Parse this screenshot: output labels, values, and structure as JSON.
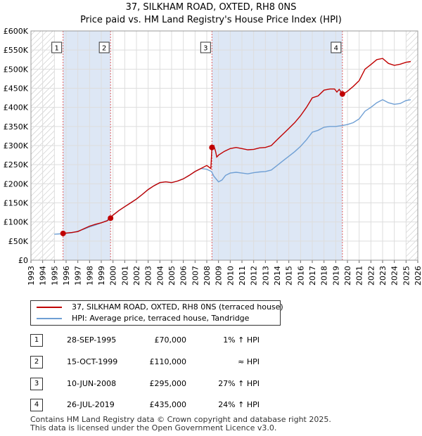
{
  "title_line1": "37, SILKHAM ROAD, OXTED, RH8 0NS",
  "title_line2": "Price paid vs. HM Land Registry's House Price Index (HPI)",
  "chart_data": {
    "type": "line",
    "x_range": [
      1993,
      2026
    ],
    "ylim": [
      0,
      600000
    ],
    "y_ticks": [
      {
        "value": 0,
        "label": "£0"
      },
      {
        "value": 50000,
        "label": "£50K"
      },
      {
        "value": 100000,
        "label": "£100K"
      },
      {
        "value": 150000,
        "label": "£150K"
      },
      {
        "value": 200000,
        "label": "£200K"
      },
      {
        "value": 250000,
        "label": "£250K"
      },
      {
        "value": 300000,
        "label": "£300K"
      },
      {
        "value": 350000,
        "label": "£350K"
      },
      {
        "value": 400000,
        "label": "£400K"
      },
      {
        "value": 450000,
        "label": "£450K"
      },
      {
        "value": 500000,
        "label": "£500K"
      },
      {
        "value": 550000,
        "label": "£550K"
      },
      {
        "value": 600000,
        "label": "£600K"
      }
    ],
    "x_ticks": [
      "1993",
      "1994",
      "1995",
      "1996",
      "1997",
      "1998",
      "1999",
      "2000",
      "2001",
      "2002",
      "2003",
      "2004",
      "2005",
      "2006",
      "2007",
      "2008",
      "2009",
      "2010",
      "2011",
      "2012",
      "2013",
      "2014",
      "2015",
      "2016",
      "2017",
      "2018",
      "2019",
      "2020",
      "2021",
      "2022",
      "2023",
      "2024",
      "2025",
      "2026"
    ],
    "hatched_ranges": [
      [
        1993,
        1995.0
      ],
      [
        2025.0,
        2026
      ]
    ],
    "shaded_ranges": [
      [
        1995.74,
        1999.79
      ],
      [
        2008.44,
        2019.57
      ]
    ],
    "colors": {
      "property": "#c00000",
      "hpi": "#6f9fd4",
      "shade": "#dde7f5",
      "vline": "#e06060"
    },
    "series": [
      {
        "name": "37, SILKHAM ROAD, OXTED, RH8 0NS (terraced house)",
        "color": "#c00000",
        "points": [
          [
            1995.74,
            70000
          ],
          [
            1996.0,
            71000
          ],
          [
            1996.5,
            72500
          ],
          [
            1997.0,
            75000
          ],
          [
            1997.5,
            82000
          ],
          [
            1998.0,
            89000
          ],
          [
            1998.5,
            94000
          ],
          [
            1999.0,
            98000
          ],
          [
            1999.5,
            103000
          ],
          [
            1999.79,
            110000
          ],
          [
            2000.0,
            118000
          ],
          [
            2000.5,
            130000
          ],
          [
            2001.0,
            140000
          ],
          [
            2001.5,
            150000
          ],
          [
            2002.0,
            160000
          ],
          [
            2002.5,
            172000
          ],
          [
            2003.0,
            185000
          ],
          [
            2003.5,
            195000
          ],
          [
            2004.0,
            203000
          ],
          [
            2004.5,
            205000
          ],
          [
            2005.0,
            203000
          ],
          [
            2005.5,
            207000
          ],
          [
            2006.0,
            213000
          ],
          [
            2006.5,
            222000
          ],
          [
            2007.0,
            232000
          ],
          [
            2007.5,
            240000
          ],
          [
            2008.0,
            248000
          ],
          [
            2008.35,
            240000
          ],
          [
            2008.44,
            295000
          ],
          [
            2008.6,
            300000
          ],
          [
            2008.75,
            285000
          ],
          [
            2008.85,
            270000
          ],
          [
            2009.0,
            275000
          ],
          [
            2009.5,
            285000
          ],
          [
            2010.0,
            292000
          ],
          [
            2010.5,
            295000
          ],
          [
            2011.0,
            292000
          ],
          [
            2011.5,
            289000
          ],
          [
            2012.0,
            290000
          ],
          [
            2012.5,
            294000
          ],
          [
            2013.0,
            295000
          ],
          [
            2013.5,
            300000
          ],
          [
            2014.0,
            315000
          ],
          [
            2014.5,
            330000
          ],
          [
            2015.0,
            345000
          ],
          [
            2015.5,
            360000
          ],
          [
            2016.0,
            378000
          ],
          [
            2016.5,
            400000
          ],
          [
            2017.0,
            425000
          ],
          [
            2017.5,
            430000
          ],
          [
            2018.0,
            445000
          ],
          [
            2018.5,
            448000
          ],
          [
            2018.9,
            448000
          ],
          [
            2019.1,
            440000
          ],
          [
            2019.3,
            447000
          ],
          [
            2019.57,
            435000
          ],
          [
            2019.8,
            438000
          ],
          [
            2020.0,
            442000
          ],
          [
            2020.5,
            455000
          ],
          [
            2021.0,
            470000
          ],
          [
            2021.5,
            500000
          ],
          [
            2022.0,
            512000
          ],
          [
            2022.5,
            525000
          ],
          [
            2023.0,
            528000
          ],
          [
            2023.5,
            515000
          ],
          [
            2024.0,
            510000
          ],
          [
            2024.5,
            513000
          ],
          [
            2025.0,
            518000
          ],
          [
            2025.4,
            520000
          ]
        ]
      },
      {
        "name": "HPI: Average price, terraced house, Tandridge",
        "color": "#6f9fd4",
        "points": [
          [
            1995.0,
            68000
          ],
          [
            1995.5,
            69000
          ],
          [
            1996.0,
            70500
          ],
          [
            1996.5,
            72000
          ],
          [
            1997.0,
            76000
          ],
          [
            1997.5,
            81000
          ],
          [
            1998.0,
            87000
          ],
          [
            1998.5,
            92000
          ],
          [
            1999.0,
            98000
          ],
          [
            1999.5,
            104000
          ],
          [
            2000.0,
            118000
          ],
          [
            2000.5,
            130000
          ],
          [
            2001.0,
            140000
          ],
          [
            2001.5,
            150000
          ],
          [
            2002.0,
            160000
          ],
          [
            2002.5,
            172000
          ],
          [
            2003.0,
            185000
          ],
          [
            2003.5,
            195000
          ],
          [
            2004.0,
            203000
          ],
          [
            2004.5,
            205000
          ],
          [
            2005.0,
            203000
          ],
          [
            2005.5,
            207000
          ],
          [
            2006.0,
            213000
          ],
          [
            2006.5,
            222000
          ],
          [
            2007.0,
            232000
          ],
          [
            2007.5,
            240000
          ],
          [
            2008.0,
            238000
          ],
          [
            2008.4,
            232000
          ],
          [
            2008.6,
            220000
          ],
          [
            2009.0,
            205000
          ],
          [
            2009.3,
            210000
          ],
          [
            2009.6,
            222000
          ],
          [
            2010.0,
            228000
          ],
          [
            2010.5,
            230000
          ],
          [
            2011.0,
            228000
          ],
          [
            2011.5,
            226000
          ],
          [
            2012.0,
            229000
          ],
          [
            2012.5,
            231000
          ],
          [
            2013.0,
            232000
          ],
          [
            2013.5,
            236000
          ],
          [
            2014.0,
            248000
          ],
          [
            2014.5,
            260000
          ],
          [
            2015.0,
            272000
          ],
          [
            2015.5,
            284000
          ],
          [
            2016.0,
            298000
          ],
          [
            2016.5,
            315000
          ],
          [
            2017.0,
            335000
          ],
          [
            2017.5,
            340000
          ],
          [
            2018.0,
            348000
          ],
          [
            2018.5,
            350000
          ],
          [
            2019.0,
            350000
          ],
          [
            2019.5,
            352000
          ],
          [
            2020.0,
            355000
          ],
          [
            2020.5,
            360000
          ],
          [
            2021.0,
            370000
          ],
          [
            2021.5,
            390000
          ],
          [
            2022.0,
            400000
          ],
          [
            2022.5,
            412000
          ],
          [
            2023.0,
            420000
          ],
          [
            2023.5,
            412000
          ],
          [
            2024.0,
            408000
          ],
          [
            2024.5,
            410000
          ],
          [
            2025.0,
            418000
          ],
          [
            2025.4,
            420000
          ]
        ]
      }
    ],
    "sales": [
      {
        "num": "1",
        "x": 1995.74,
        "price": 70000
      },
      {
        "num": "2",
        "x": 1999.79,
        "price": 110000
      },
      {
        "num": "3",
        "x": 2008.44,
        "price": 295000
      },
      {
        "num": "4",
        "x": 2019.57,
        "price": 435000
      }
    ]
  },
  "legend": {
    "property_label": "37, SILKHAM ROAD, OXTED, RH8 0NS (terraced house)",
    "hpi_label": "HPI: Average price, terraced house, Tandridge"
  },
  "transactions": [
    {
      "num": "1",
      "date": "28-SEP-1995",
      "price": "£70,000",
      "hpi": "1% ↑ HPI"
    },
    {
      "num": "2",
      "date": "15-OCT-1999",
      "price": "£110,000",
      "hpi": "≈ HPI"
    },
    {
      "num": "3",
      "date": "10-JUN-2008",
      "price": "£295,000",
      "hpi": "27% ↑ HPI"
    },
    {
      "num": "4",
      "date": "26-JUL-2019",
      "price": "£435,000",
      "hpi": "24% ↑ HPI"
    }
  ],
  "footer": {
    "line1": "Contains HM Land Registry data © Crown copyright and database right 2025.",
    "line2": "This data is licensed under the Open Government Licence v3.0."
  }
}
